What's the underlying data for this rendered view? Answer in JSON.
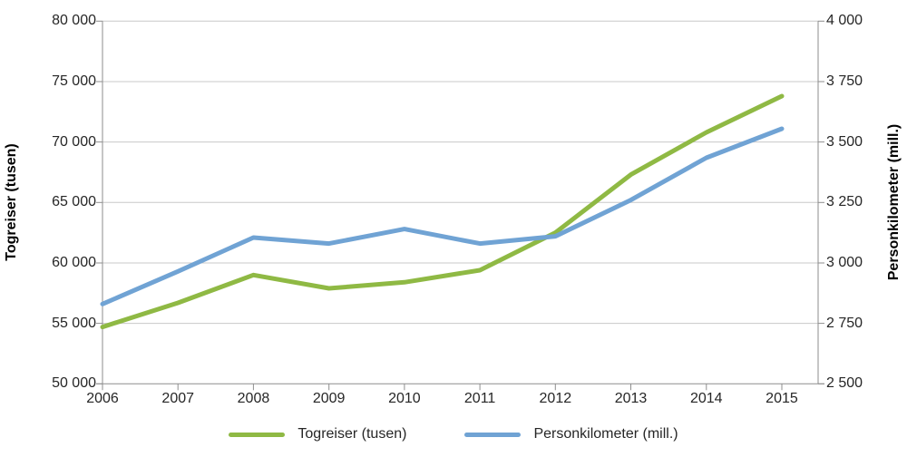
{
  "chart_data": {
    "type": "line",
    "title": "",
    "x_labels": [
      "2006",
      "2007",
      "2008",
      "2009",
      "2010",
      "2011",
      "2012",
      "2013",
      "2014",
      "2015"
    ],
    "categories": [
      2006,
      2007,
      2008,
      2009,
      2010,
      2011,
      2012,
      2013,
      2014,
      2015
    ],
    "series": [
      {
        "name": "Togreiser (tusen)",
        "axis": "left",
        "color": "#8FB944",
        "values": [
          54700,
          56700,
          59000,
          57900,
          58400,
          59400,
          62500,
          67300,
          70800,
          73800
        ]
      },
      {
        "name": "Personkilometer (mill.)",
        "axis": "right",
        "color": "#70A3D4",
        "values": [
          2830,
          2965,
          3105,
          3080,
          3140,
          3080,
          3110,
          3260,
          3435,
          3555
        ]
      }
    ],
    "left_axis": {
      "title": "Togreiser (tusen)",
      "min": 50000,
      "max": 80000,
      "step": 5000,
      "tick_labels": [
        "80 000",
        "75 000",
        "70 000",
        "65 000",
        "60 000",
        "55 000",
        "50 000"
      ]
    },
    "right_axis": {
      "title": "Personkilometer (mill.)",
      "min": 2500,
      "max": 4000,
      "step": 250,
      "tick_labels": [
        "4 000",
        "3 750",
        "3 500",
        "3 250",
        "3 000",
        "2 750",
        "2 500"
      ]
    },
    "grid": true,
    "legend_position": "bottom",
    "line_width": 5,
    "colors": {
      "gridline": "#C8C8C8",
      "axis": "#8E8E8E",
      "text": "#262626"
    }
  }
}
